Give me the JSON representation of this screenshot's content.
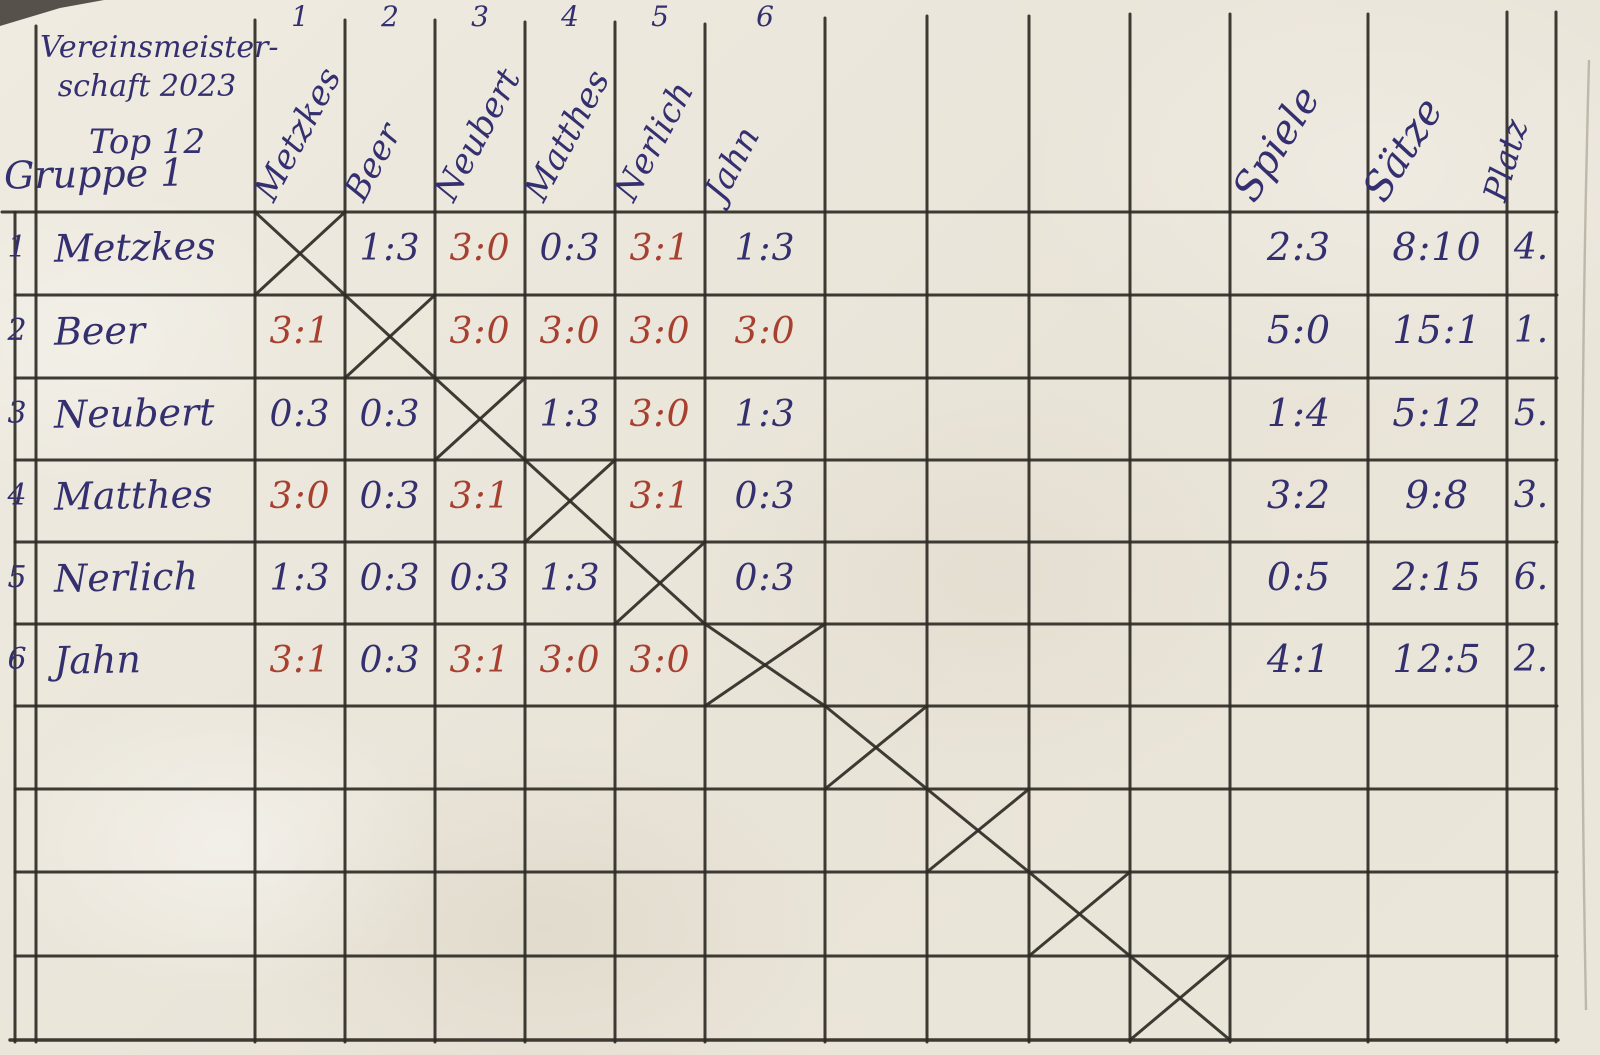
{
  "sheet": {
    "title_line1": "Vereinsmeister-",
    "title_line2": "schaft 2023",
    "title_line3": "Top 12",
    "group_label": "Gruppe 1"
  },
  "column_numbers": [
    "1",
    "2",
    "3",
    "4",
    "5",
    "6"
  ],
  "summary_headers": {
    "games": "Spiele",
    "sets": "Sätze",
    "rank": "Platz"
  },
  "players": [
    {
      "number": "1",
      "name": "Metzkes",
      "results": [
        null,
        {
          "score": "1:3",
          "win": false
        },
        {
          "score": "3:0",
          "win": true
        },
        {
          "score": "0:3",
          "win": false
        },
        {
          "score": "3:1",
          "win": true
        },
        {
          "score": "1:3",
          "win": false
        }
      ],
      "games": "2:3",
      "sets": "8:10",
      "rank": "4."
    },
    {
      "number": "2",
      "name": "Beer",
      "results": [
        {
          "score": "3:1",
          "win": true
        },
        null,
        {
          "score": "3:0",
          "win": true
        },
        {
          "score": "3:0",
          "win": true
        },
        {
          "score": "3:0",
          "win": true
        },
        {
          "score": "3:0",
          "win": true
        }
      ],
      "games": "5:0",
      "sets": "15:1",
      "rank": "1."
    },
    {
      "number": "3",
      "name": "Neubert",
      "results": [
        {
          "score": "0:3",
          "win": false
        },
        {
          "score": "0:3",
          "win": false
        },
        null,
        {
          "score": "1:3",
          "win": false
        },
        {
          "score": "3:0",
          "win": true
        },
        {
          "score": "1:3",
          "win": false
        }
      ],
      "games": "1:4",
      "sets": "5:12",
      "rank": "5."
    },
    {
      "number": "4",
      "name": "Matthes",
      "results": [
        {
          "score": "3:0",
          "win": true
        },
        {
          "score": "0:3",
          "win": false
        },
        {
          "score": "3:1",
          "win": true
        },
        null,
        {
          "score": "3:1",
          "win": true
        },
        {
          "score": "0:3",
          "win": false
        }
      ],
      "games": "3:2",
      "sets": "9:8",
      "rank": "3."
    },
    {
      "number": "5",
      "name": "Nerlich",
      "results": [
        {
          "score": "1:3",
          "win": false
        },
        {
          "score": "0:3",
          "win": false
        },
        {
          "score": "0:3",
          "win": false
        },
        {
          "score": "1:3",
          "win": false
        },
        null,
        {
          "score": "0:3",
          "win": false
        }
      ],
      "games": "0:5",
      "sets": "2:15",
      "rank": "6."
    },
    {
      "number": "6",
      "name": "Jahn",
      "results": [
        {
          "score": "3:1",
          "win": true
        },
        {
          "score": "0:3",
          "win": false
        },
        {
          "score": "3:1",
          "win": true
        },
        {
          "score": "3:0",
          "win": true
        },
        {
          "score": "3:0",
          "win": true
        },
        null
      ],
      "games": "4:1",
      "sets": "12:5",
      "rank": "2."
    }
  ],
  "ink_colors": {
    "win_red": "#a8402f",
    "loss_blue": "#34306f",
    "grid_black": "#2f2c26",
    "paper": "#eae5d9"
  }
}
